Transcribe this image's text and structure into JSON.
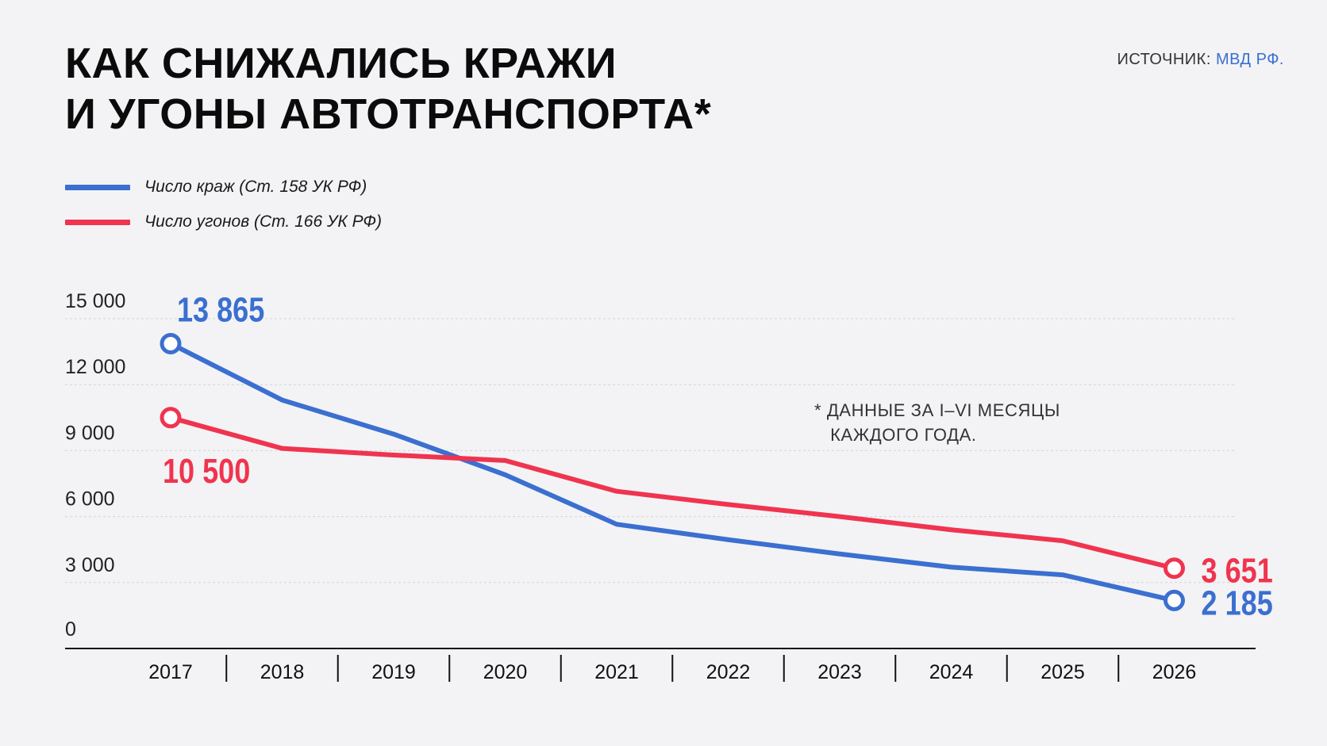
{
  "title": {
    "line1": "КАК СНИЖАЛИСЬ КРАЖИ",
    "line2": "И УГОНЫ АВТОТРАНСПОРТА*"
  },
  "source": {
    "label": "ИСТОЧНИК:",
    "name": "МВД РФ."
  },
  "legend": [
    {
      "label": "Число краж (Ст. 158 УК РФ)",
      "color": "#3b6fd0"
    },
    {
      "label": "Число угонов (Ст. 166 УК РФ)",
      "color": "#f0344f"
    }
  ],
  "note": {
    "line1": "* ДАННЫЕ ЗА I–VI МЕСЯЦЫ",
    "line2": "КАЖДОГО ГОДА."
  },
  "chart_data": {
    "type": "line",
    "title": "КАК СНИЖАЛИСЬ КРАЖИ И УГОНЫ АВТОТРАНСПОРТА*",
    "xlabel": "",
    "ylabel": "",
    "ylim": [
      0,
      15000
    ],
    "yticks": [
      0,
      3000,
      6000,
      9000,
      12000,
      15000
    ],
    "ytick_labels": [
      "0",
      "3 000",
      "6 000",
      "9 000",
      "12 000",
      "15 000"
    ],
    "categories": [
      "2017",
      "2018",
      "2019",
      "2020",
      "2021",
      "2022",
      "2023",
      "2024",
      "2025",
      "2026"
    ],
    "grid": "horizontal dashed",
    "legend_position": "top-left",
    "series": [
      {
        "name": "Число краж (Ст. 158 УК РФ)",
        "color": "#3b6fd0",
        "values": [
          13865,
          11300,
          9750,
          7900,
          5650,
          4950,
          4300,
          3700,
          3350,
          2185
        ],
        "labels": [
          {
            "index": 0,
            "text": "13 865",
            "position": "above"
          },
          {
            "index": 9,
            "text": "2 185",
            "position": "right"
          }
        ]
      },
      {
        "name": "Число угонов (Ст. 166 УК РФ)",
        "color": "#f0344f",
        "values": [
          10500,
          9100,
          8800,
          8550,
          7150,
          6550,
          6000,
          5400,
          4900,
          3651
        ],
        "labels": [
          {
            "index": 0,
            "text": "10 500",
            "position": "below"
          },
          {
            "index": 9,
            "text": "3 651",
            "position": "right"
          }
        ]
      }
    ]
  }
}
